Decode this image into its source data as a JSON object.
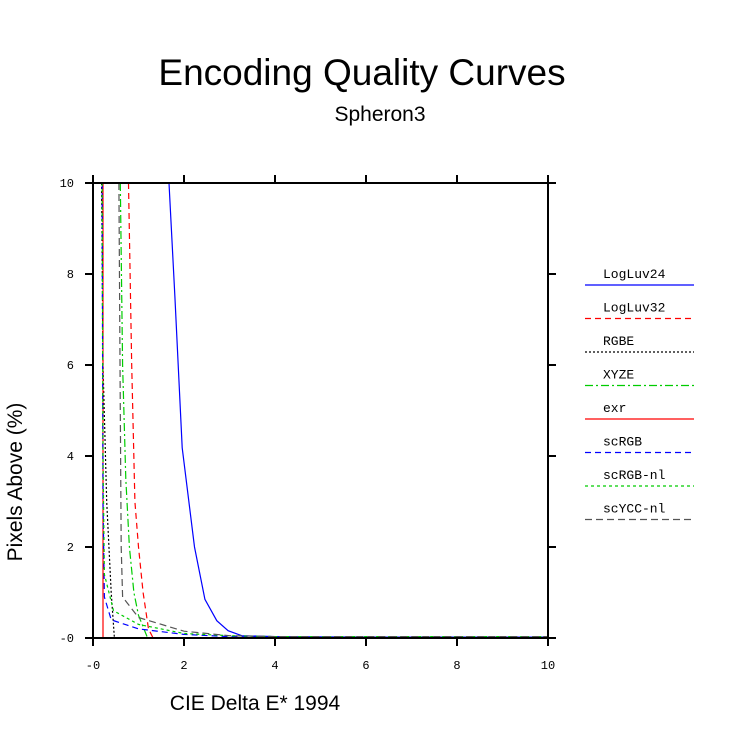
{
  "chart_data": {
    "type": "line",
    "title": "Encoding Quality Curves",
    "subtitle": "Spheron3",
    "xlabel": "CIE Delta E* 1994",
    "ylabel": "Pixels Above (%)",
    "xlim": [
      0,
      10
    ],
    "ylim": [
      0,
      10
    ],
    "xticks": [
      "-0",
      "2",
      "4",
      "6",
      "8",
      "10"
    ],
    "yticks": [
      "-0",
      "2",
      "4",
      "6",
      "8",
      "10"
    ],
    "xtick_values": [
      0,
      2,
      4,
      6,
      8,
      10
    ],
    "ytick_values": [
      0,
      2,
      4,
      6,
      8,
      10
    ],
    "grid": false,
    "legend_position": "right",
    "series": [
      {
        "name": "LogLuv24",
        "color": "#0000ff",
        "dash": "",
        "x": [
          1.67,
          1.8,
          1.96,
          2.23,
          2.46,
          2.72,
          2.97,
          3.27,
          4,
          6,
          10
        ],
        "y": [
          10,
          7.5,
          4.18,
          2.0,
          0.85,
          0.38,
          0.16,
          0.05,
          0.03,
          0.02,
          0.02
        ]
      },
      {
        "name": "LogLuv32",
        "color": "#ff0000",
        "dash": "6,4",
        "x": [
          0.78,
          0.85,
          0.92,
          1.0,
          1.1,
          1.22,
          1.32,
          10
        ],
        "y": [
          10,
          6,
          3,
          2,
          1,
          0.2,
          0,
          0
        ]
      },
      {
        "name": "RGBE",
        "color": "#000000",
        "dash": "2,2",
        "x": [
          0.19,
          0.22,
          0.3,
          0.4,
          0.47,
          10
        ],
        "y": [
          10,
          6,
          3,
          1,
          0,
          0
        ]
      },
      {
        "name": "XYZE",
        "color": "#00cc00",
        "dash": "8,3,2,3",
        "x": [
          0.6,
          0.65,
          0.72,
          0.8,
          0.9,
          1.0,
          1.2,
          10
        ],
        "y": [
          10,
          6,
          3.5,
          2,
          1,
          0.5,
          0,
          0
        ]
      },
      {
        "name": "exr",
        "color": "#ff0000",
        "dash": "",
        "x": [
          0.22,
          0.22,
          10
        ],
        "y": [
          10,
          0,
          0
        ]
      },
      {
        "name": "scRGB",
        "color": "#0000ff",
        "dash": "6,4",
        "x": [
          0.2,
          0.22,
          0.25,
          0.4,
          1.0,
          2.0,
          3.0,
          4,
          10
        ],
        "y": [
          10,
          3,
          0.9,
          0.4,
          0.2,
          0.08,
          0.03,
          0.02,
          0.02
        ]
      },
      {
        "name": "scRGB-nl",
        "color": "#00cc00",
        "dash": "3,3",
        "x": [
          0.2,
          0.22,
          0.25,
          0.45,
          1.0,
          2.0,
          3.0,
          4,
          10
        ],
        "y": [
          10,
          4,
          1.4,
          0.6,
          0.3,
          0.1,
          0.05,
          0.03,
          0.03
        ]
      },
      {
        "name": "scYCC-nl",
        "color": "#555555",
        "dash": "7,4",
        "x": [
          0.57,
          0.6,
          0.62,
          0.65,
          1.0,
          2.0,
          3.0,
          4,
          10
        ],
        "y": [
          10,
          5,
          2,
          0.9,
          0.45,
          0.15,
          0.05,
          0.03,
          0.03
        ]
      }
    ]
  }
}
